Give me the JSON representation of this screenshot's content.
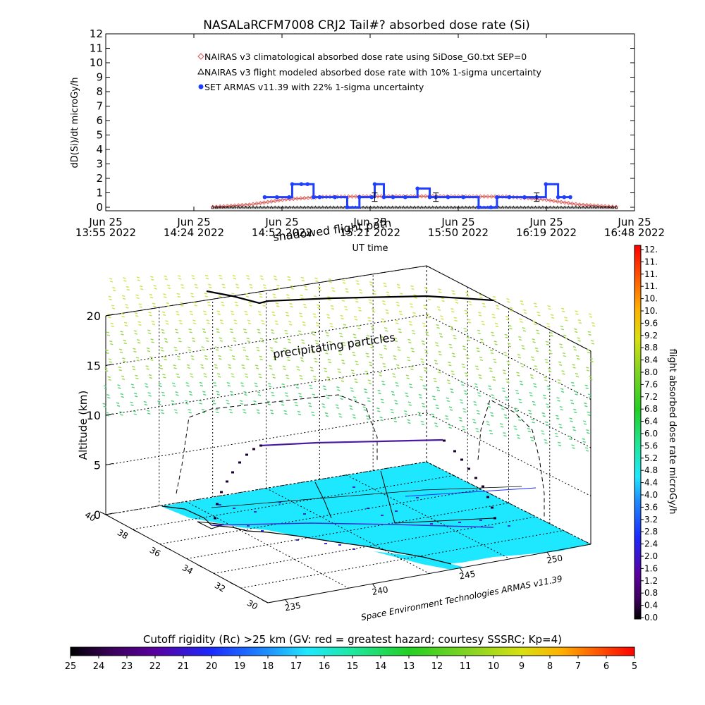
{
  "chart_data": [
    {
      "type": "line",
      "title": "NASALaRCFM7008  CRJ2 Tail#? absorbed dose rate (Si)",
      "xlabel": "UT time",
      "ylabel": "dD(Si)/dt microGy/h",
      "ylim": [
        0,
        12
      ],
      "y_ticks": [
        "0",
        "1",
        "2",
        "3",
        "4",
        "5",
        "6",
        "7",
        "8",
        "9",
        "10",
        "11",
        "12"
      ],
      "x_ticks": [
        {
          "line1": "Jun 25",
          "line2": "13:55 2022"
        },
        {
          "line1": "Jun 25",
          "line2": "14:24 2022"
        },
        {
          "line1": "Jun 25",
          "line2": "14:52 2022"
        },
        {
          "line1": "Jun 25",
          "line2": "15:21 2022"
        },
        {
          "line1": "Jun 25",
          "line2": "15:50 2022"
        },
        {
          "line1": "Jun 25",
          "line2": "16:19 2022"
        },
        {
          "line1": "Jun 25",
          "line2": "16:48 2022"
        }
      ],
      "x_range_min": [
        0,
        173
      ],
      "legend_position": "top-center",
      "series": [
        {
          "name": "NAIRAS v3 climatological absorbed dose rate using SiDose_G0.txt SEP=0",
          "color": "#d9534f",
          "x_min": [
            35,
            47,
            59,
            71,
            83,
            95,
            107,
            119,
            131,
            143,
            155,
            167
          ],
          "values": [
            0.02,
            0.18,
            0.55,
            0.72,
            0.75,
            0.76,
            0.76,
            0.75,
            0.74,
            0.55,
            0.18,
            0.02
          ]
        },
        {
          "name": "NAIRAS v3 flight modeled absorbed dose rate with 10% 1-sigma uncertainty",
          "color": "#000000",
          "x_min": [
            35,
            47,
            59,
            71,
            83,
            95,
            107,
            119,
            131,
            143,
            155,
            167
          ],
          "values": [
            0.0,
            0.0,
            0.0,
            0.0,
            0.0,
            0.0,
            0.0,
            0.0,
            0.0,
            0.0,
            0.0,
            0.0
          ]
        },
        {
          "name": "SET ARMAS v11.39 with 22% 1-sigma uncertainty",
          "color": "#1f3fff",
          "x_min": [
            52,
            56,
            60,
            61,
            64,
            66,
            68,
            70,
            75,
            79,
            83,
            87,
            88,
            91,
            94,
            98,
            102,
            106,
            108,
            112,
            117,
            122,
            126,
            128,
            132,
            137,
            141,
            144,
            148,
            150,
            152
          ],
          "values": [
            0.7,
            0.7,
            0.7,
            1.6,
            1.6,
            1.6,
            0.7,
            0.7,
            0.7,
            0.0,
            0.7,
            0.7,
            1.6,
            0.7,
            0.7,
            0.7,
            1.3,
            0.7,
            0.7,
            0.7,
            0.7,
            0.0,
            0.0,
            0.7,
            0.7,
            0.7,
            0.7,
            1.6,
            0.7,
            0.7,
            0.7
          ]
        }
      ]
    },
    {
      "type": "scatter",
      "title": "",
      "ylabel": "Altitude (km)",
      "zlim": [
        0,
        20
      ],
      "z_ticks": [
        "0",
        "5",
        "10",
        "15",
        "20"
      ],
      "lat_ticks": [
        "40",
        "38",
        "36",
        "34",
        "32",
        "30"
      ],
      "lon_ticks": [
        "235",
        "240",
        "245",
        "250"
      ],
      "annotations": {
        "shadow": "shadowed flight path",
        "particles": "precipitating particles",
        "credit": "Space Environment Technologies ARMAS v11.39"
      },
      "flight_altitude_km": 7.5,
      "particle_layer_km": [
        12,
        22
      ]
    },
    {
      "type": "heatmap",
      "title": "flight absorbed dose rate microGy/h",
      "range": [
        0.0,
        12.0
      ],
      "tick_labels": [
        "0.0",
        "0.4",
        "0.8",
        "1.2",
        "1.6",
        "2.0",
        "2.4",
        "2.8",
        "3.2",
        "3.6",
        "4.0",
        "4.4",
        "4.8",
        "5.2",
        "5.6",
        "6.0",
        "6.4",
        "6.8",
        "7.2",
        "7.6",
        "8.0",
        "8.4",
        "8.8",
        "9.2",
        "9.6",
        "10.",
        "10.",
        "11.",
        "11.",
        "11.",
        "12."
      ]
    },
    {
      "type": "heatmap",
      "title": "Cutoff rigidity (Rc) >25 km (GV: red = greatest hazard; courtesy SSSRC; Kp=4)",
      "range": [
        25,
        5
      ],
      "tick_labels": [
        "25",
        "24",
        "23",
        "22",
        "21",
        "20",
        "19",
        "18",
        "17",
        "16",
        "15",
        "14",
        "13",
        "12",
        "11",
        "10",
        "9",
        "8",
        "7",
        "6",
        "5"
      ]
    }
  ]
}
